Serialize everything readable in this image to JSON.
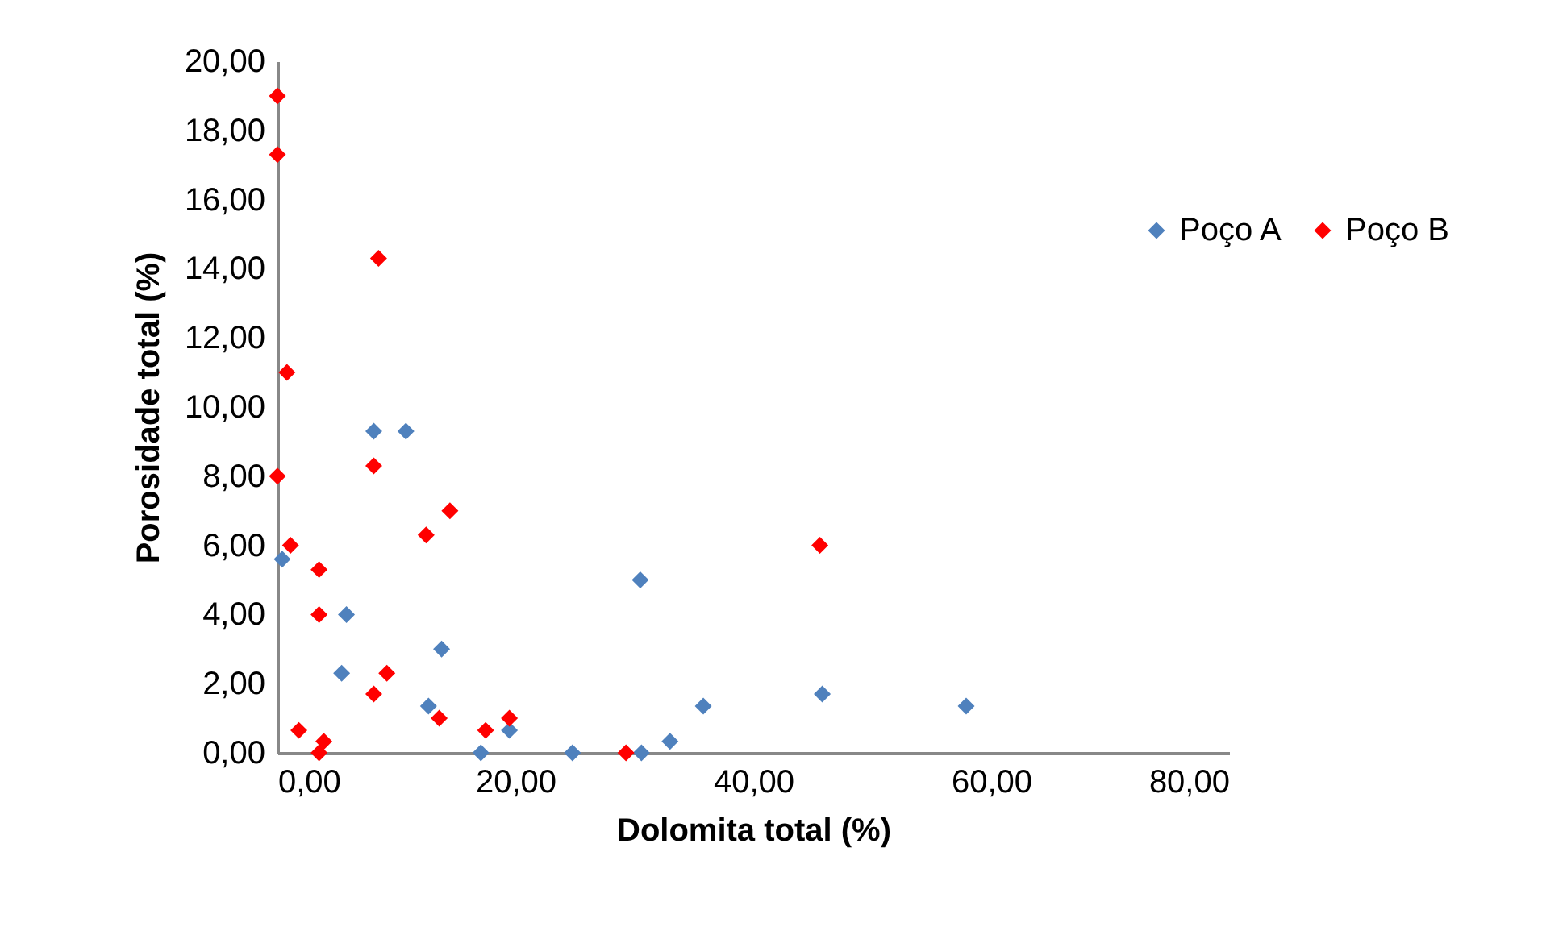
{
  "chart_data": {
    "type": "scatter",
    "xlabel": "Dolomita total (%)",
    "ylabel": "Porosidade total (%)",
    "xlim": [
      0,
      80
    ],
    "ylim": [
      0,
      20
    ],
    "xticks": [
      {
        "value": 0,
        "label": "0,00"
      },
      {
        "value": 20,
        "label": "20,00"
      },
      {
        "value": 40,
        "label": "40,00"
      },
      {
        "value": 60,
        "label": "60,00"
      },
      {
        "value": 80,
        "label": "80,00"
      }
    ],
    "yticks": [
      {
        "value": 0,
        "label": "0,00"
      },
      {
        "value": 2,
        "label": "2,00"
      },
      {
        "value": 4,
        "label": "4,00"
      },
      {
        "value": 6,
        "label": "6,00"
      },
      {
        "value": 8,
        "label": "8,00"
      },
      {
        "value": 10,
        "label": "10,00"
      },
      {
        "value": 12,
        "label": "12,00"
      },
      {
        "value": 14,
        "label": "14,00"
      },
      {
        "value": 16,
        "label": "16,00"
      },
      {
        "value": 18,
        "label": "18,00"
      },
      {
        "value": 20,
        "label": "20,00"
      }
    ],
    "grid": false,
    "legend": "right",
    "marker": "diamond",
    "series": [
      {
        "name": "Poço A",
        "color": "#4f81bd",
        "x": [
          0.4,
          8.1,
          10.8,
          5.8,
          5.4,
          13.8,
          12.7,
          17.1,
          19.5,
          24.8,
          30.5,
          30.6,
          33.0,
          35.8,
          45.8,
          57.9
        ],
        "values": [
          5.6,
          9.3,
          9.3,
          4.0,
          2.3,
          3.0,
          1.35,
          0,
          0.65,
          0,
          5.0,
          0,
          0.33,
          1.35,
          1.7,
          1.35
        ]
      },
      {
        "name": "Poço B",
        "color": "#ff0000",
        "x": [
          0,
          0,
          8.5,
          0.8,
          0,
          8.1,
          14.5,
          12.5,
          1.1,
          3.5,
          3.5,
          9.2,
          8.1,
          13.6,
          1.8,
          3.9,
          3.5,
          17.5,
          19.5,
          29.3,
          45.6
        ],
        "values": [
          19.0,
          17.3,
          14.3,
          11.0,
          8.0,
          8.3,
          7.0,
          6.3,
          6.0,
          5.3,
          4.0,
          2.3,
          1.7,
          1.0,
          0.65,
          0.33,
          0,
          0.65,
          1.0,
          0,
          6.0
        ]
      }
    ]
  }
}
